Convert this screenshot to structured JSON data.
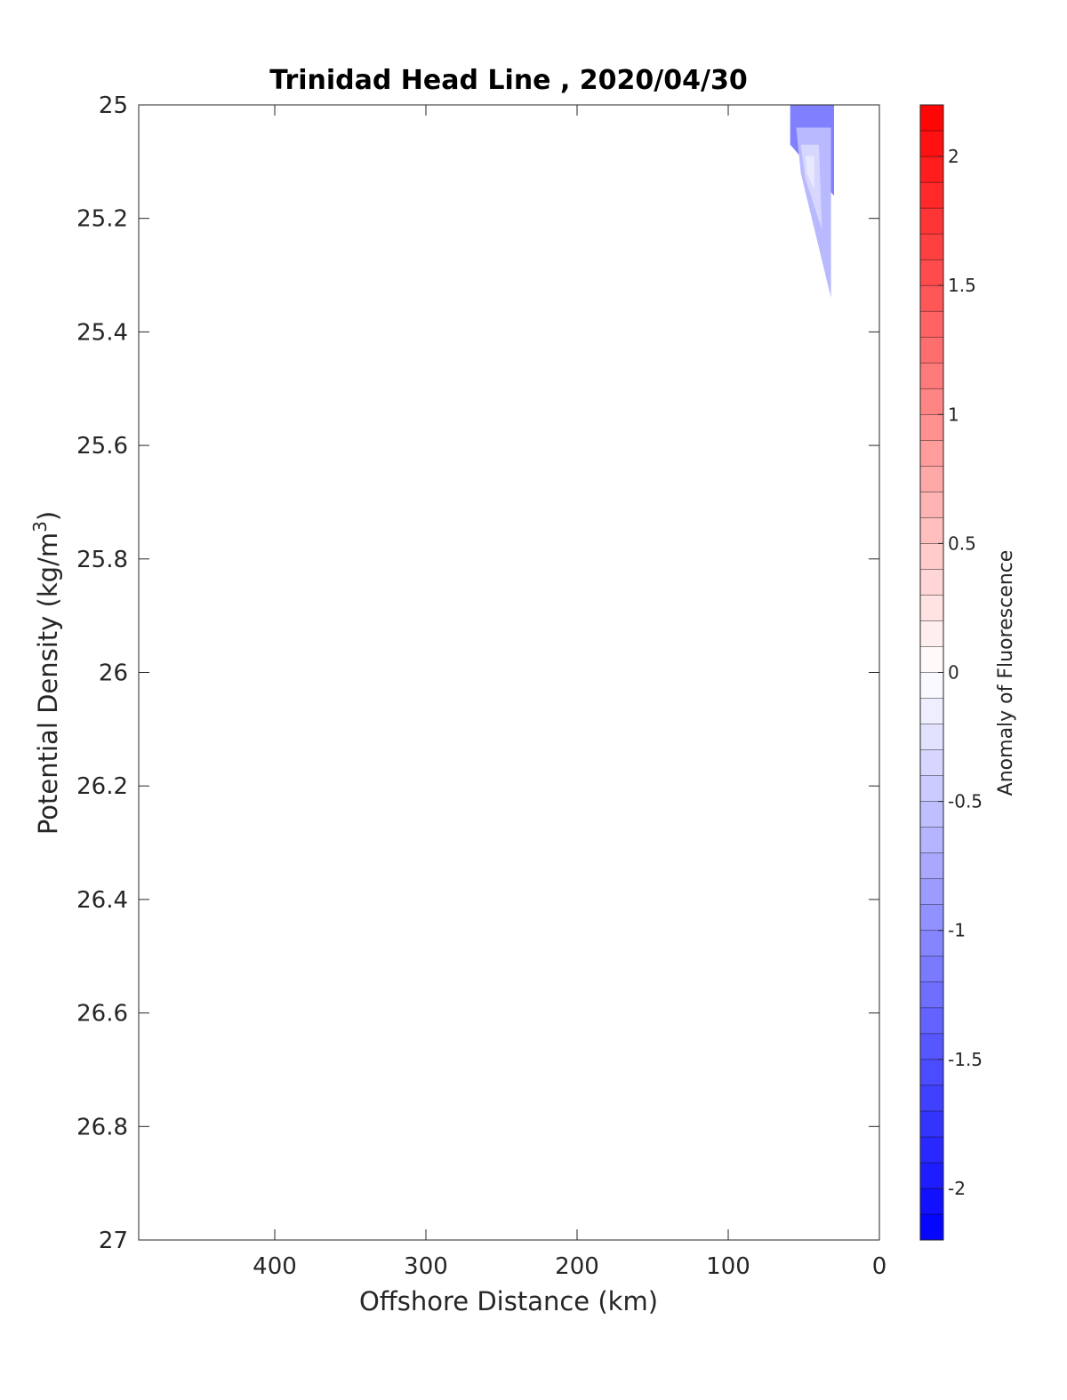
{
  "chart_data": {
    "type": "heatmap",
    "title": "Trinidad Head Line , 2020/04/30",
    "xlabel": "Offshore Distance (km)",
    "ylabel_main": "Potential Density (kg/m",
    "ylabel_sup": "3",
    "ylabel_end": ")",
    "colorbar_label": "Anomaly of Fluorescence",
    "xlim": [
      490,
      0
    ],
    "x_reversed": true,
    "ylim": [
      25,
      27
    ],
    "y_reversed": true,
    "x_ticks": [
      400,
      300,
      200,
      100,
      0
    ],
    "x_tick_labels": [
      "400",
      "300",
      "200",
      "100",
      "0"
    ],
    "y_ticks": [
      25,
      25.2,
      25.4,
      25.6,
      25.8,
      26,
      26.2,
      26.4,
      26.6,
      26.8,
      27
    ],
    "y_tick_labels": [
      "25",
      "25.2",
      "25.4",
      "25.6",
      "25.8",
      "26",
      "26.2",
      "26.4",
      "26.6",
      "26.8",
      "27"
    ],
    "colorbar": {
      "clim": [
        -2.2,
        2.2
      ],
      "level_step": 0.1,
      "ticks": [
        2,
        1.5,
        1,
        0.5,
        0,
        -0.5,
        -1,
        -1.5,
        -2
      ],
      "tick_labels": [
        "2",
        "1.5",
        "1",
        "0.5",
        "0",
        "-0.5",
        "-1",
        "-1.5",
        "-2"
      ],
      "min_color": "#0000ff",
      "mid_color": "#ffffff",
      "max_color": "#ff0000"
    },
    "filled_region": {
      "description_values": "negative fluorescence anomaly patch near shore",
      "outline": [
        {
          "x": 59,
          "y": 25.0
        },
        {
          "x": 30,
          "y": 25.0
        },
        {
          "x": 30,
          "y": 25.39
        },
        {
          "x": 59,
          "y": 25.1
        }
      ],
      "layers": [
        {
          "anomaly": -1.1,
          "outline": [
            {
              "x": 59,
              "y": 25.0
            },
            {
              "x": 30,
              "y": 25.0
            },
            {
              "x": 30,
              "y": 25.16
            },
            {
              "x": 59,
              "y": 25.07
            }
          ]
        },
        {
          "anomaly": -0.6,
          "outline": [
            {
              "x": 55,
              "y": 25.04
            },
            {
              "x": 32,
              "y": 25.04
            },
            {
              "x": 32,
              "y": 25.34
            },
            {
              "x": 52,
              "y": 25.12
            }
          ]
        },
        {
          "anomaly": -0.35,
          "outline": [
            {
              "x": 52,
              "y": 25.07
            },
            {
              "x": 40,
              "y": 25.07
            },
            {
              "x": 38,
              "y": 25.22
            },
            {
              "x": 49,
              "y": 25.13
            }
          ]
        },
        {
          "anomaly": -0.2,
          "outline": [
            {
              "x": 49,
              "y": 25.09
            },
            {
              "x": 43,
              "y": 25.09
            },
            {
              "x": 43,
              "y": 25.15
            },
            {
              "x": 48,
              "y": 25.12
            }
          ]
        }
      ]
    }
  }
}
